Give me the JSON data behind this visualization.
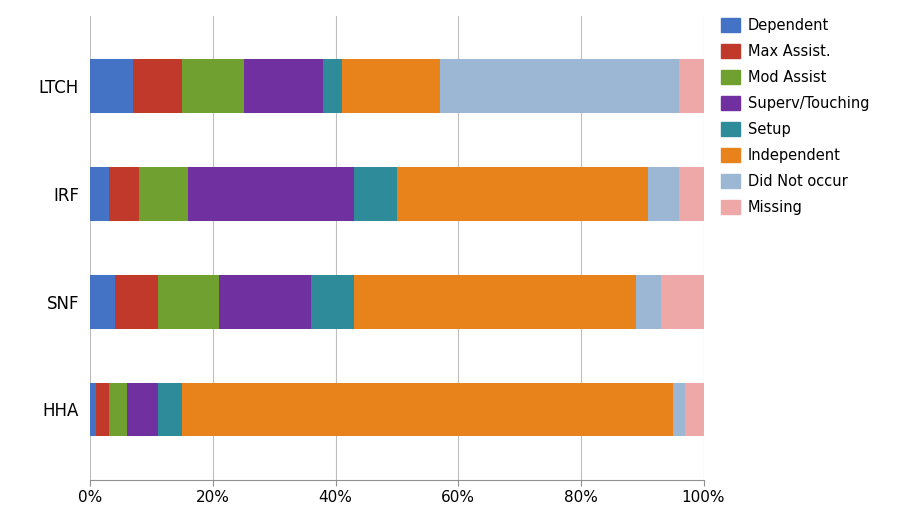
{
  "providers": [
    "LTCH",
    "IRF",
    "SNF",
    "HHA"
  ],
  "categories": [
    "Dependent",
    "Max Assist.",
    "Mod Assist",
    "Superv/Touching",
    "Setup",
    "Independent",
    "Did Not occur",
    "Missing"
  ],
  "colors": [
    "#4472C4",
    "#C0392B",
    "#70A030",
    "#7030A0",
    "#2E8B9A",
    "#E8821A",
    "#9BB7D4",
    "#EFA8A8"
  ],
  "data": {
    "LTCH": [
      7.0,
      8.0,
      10.0,
      13.0,
      3.0,
      16.0,
      39.0,
      4.0
    ],
    "IRF": [
      3.0,
      5.0,
      8.0,
      27.0,
      7.0,
      41.0,
      5.0,
      4.0
    ],
    "SNF": [
      4.0,
      7.0,
      10.0,
      15.0,
      7.0,
      46.0,
      4.0,
      7.0
    ],
    "HHA": [
      1.0,
      2.0,
      3.0,
      5.0,
      4.0,
      80.0,
      2.0,
      3.0
    ]
  },
  "background_color": "#FFFFFF",
  "grid_color": "#BEBEBE",
  "bar_height": 0.5,
  "xlim": [
    0,
    100
  ],
  "xtick_labels": [
    "0%",
    "20%",
    "40%",
    "60%",
    "80%",
    "100%"
  ],
  "xtick_values": [
    0,
    20,
    40,
    60,
    80,
    100
  ],
  "figsize": [
    9.02,
    5.27
  ],
  "dpi": 100
}
